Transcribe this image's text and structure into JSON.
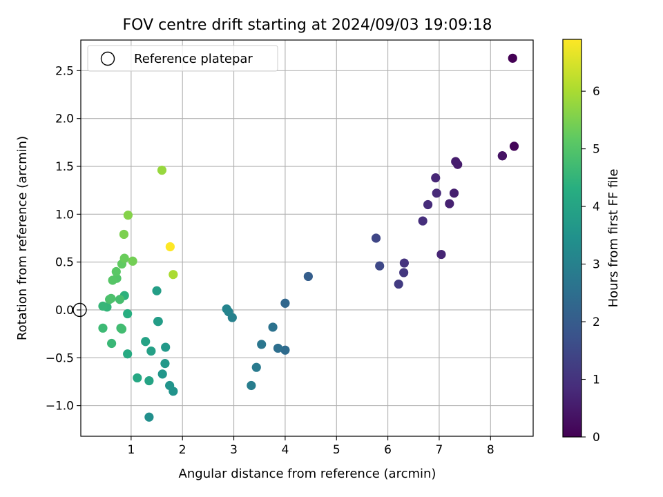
{
  "chart_data": {
    "type": "scatter",
    "title": "FOV centre drift starting at 2024/09/03 19:09:18",
    "xlabel": "Angular distance from reference (arcmin)",
    "ylabel": "Rotation from reference (arcmin)",
    "xlim": [
      0.02,
      8.83
    ],
    "ylim": [
      -1.32,
      2.82
    ],
    "xticks": [
      1,
      2,
      3,
      4,
      5,
      6,
      7,
      8
    ],
    "xtick_labels": [
      "1",
      "2",
      "3",
      "4",
      "5",
      "6",
      "7",
      "8"
    ],
    "yticks": [
      -1.0,
      -0.5,
      0.0,
      0.5,
      1.0,
      1.5,
      2.0,
      2.5
    ],
    "ytick_labels": [
      "−1.0",
      "−0.5",
      "0.0",
      "0.5",
      "1.0",
      "1.5",
      "2.0",
      "2.5"
    ],
    "grid": true,
    "legend": {
      "placement": "upper-left",
      "entries": [
        "Reference platepar"
      ]
    },
    "reference_point": {
      "x": 0.0,
      "y": 0.0
    },
    "colorbar": {
      "label": "Hours from first FF file",
      "colormap": "viridis",
      "min": 0,
      "max": 6.9,
      "ticks": [
        0,
        1,
        2,
        3,
        4,
        5,
        6
      ],
      "tick_labels": [
        "0",
        "1",
        "2",
        "3",
        "4",
        "5",
        "6"
      ]
    },
    "points": [
      {
        "x": 8.43,
        "y": 2.63,
        "c": 0.0
      },
      {
        "x": 8.46,
        "y": 1.71,
        "c": 0.1
      },
      {
        "x": 8.23,
        "y": 1.61,
        "c": 0.3
      },
      {
        "x": 8.23,
        "y": 1.61,
        "c": 0.35
      },
      {
        "x": 7.36,
        "y": 1.52,
        "c": 0.5
      },
      {
        "x": 7.32,
        "y": 1.55,
        "c": 0.55
      },
      {
        "x": 7.29,
        "y": 1.22,
        "c": 0.6
      },
      {
        "x": 7.2,
        "y": 1.11,
        "c": 0.65
      },
      {
        "x": 7.04,
        "y": 0.58,
        "c": 0.7
      },
      {
        "x": 6.93,
        "y": 1.38,
        "c": 0.75
      },
      {
        "x": 6.95,
        "y": 1.22,
        "c": 0.8
      },
      {
        "x": 6.78,
        "y": 1.1,
        "c": 0.85
      },
      {
        "x": 6.68,
        "y": 0.93,
        "c": 0.9
      },
      {
        "x": 6.32,
        "y": 0.49,
        "c": 1.0
      },
      {
        "x": 6.31,
        "y": 0.39,
        "c": 1.1
      },
      {
        "x": 6.21,
        "y": 0.27,
        "c": 1.2
      },
      {
        "x": 5.84,
        "y": 0.46,
        "c": 1.5
      },
      {
        "x": 5.77,
        "y": 0.75,
        "c": 1.45
      },
      {
        "x": 4.45,
        "y": 0.35,
        "c": 2.05
      },
      {
        "x": 4.0,
        "y": 0.07,
        "c": 2.3
      },
      {
        "x": 4.0,
        "y": -0.42,
        "c": 2.4
      },
      {
        "x": 3.86,
        "y": -0.4,
        "c": 2.5
      },
      {
        "x": 3.76,
        "y": -0.18,
        "c": 2.6
      },
      {
        "x": 3.54,
        "y": -0.36,
        "c": 2.7
      },
      {
        "x": 3.44,
        "y": -0.6,
        "c": 2.8
      },
      {
        "x": 3.34,
        "y": -0.79,
        "c": 2.9
      },
      {
        "x": 2.97,
        "y": -0.08,
        "c": 3.0
      },
      {
        "x": 2.9,
        "y": -0.02,
        "c": 3.05
      },
      {
        "x": 2.86,
        "y": 0.01,
        "c": 3.1
      },
      {
        "x": 1.35,
        "y": -1.12,
        "c": 3.4
      },
      {
        "x": 1.82,
        "y": -0.85,
        "c": 3.5
      },
      {
        "x": 1.75,
        "y": -0.79,
        "c": 3.55
      },
      {
        "x": 1.61,
        "y": -0.67,
        "c": 3.6
      },
      {
        "x": 1.66,
        "y": -0.56,
        "c": 3.65
      },
      {
        "x": 1.67,
        "y": -0.39,
        "c": 3.7
      },
      {
        "x": 1.53,
        "y": -0.12,
        "c": 3.75
      },
      {
        "x": 1.52,
        "y": -0.12,
        "c": 3.8
      },
      {
        "x": 1.5,
        "y": 0.2,
        "c": 3.85
      },
      {
        "x": 1.39,
        "y": -0.43,
        "c": 3.9
      },
      {
        "x": 1.28,
        "y": -0.33,
        "c": 3.95
      },
      {
        "x": 1.35,
        "y": -0.74,
        "c": 4.0
      },
      {
        "x": 1.12,
        "y": -0.71,
        "c": 4.1
      },
      {
        "x": 0.93,
        "y": -0.46,
        "c": 4.2
      },
      {
        "x": 0.93,
        "y": -0.04,
        "c": 4.3
      },
      {
        "x": 0.87,
        "y": 0.15,
        "c": 4.4
      },
      {
        "x": 0.53,
        "y": 0.03,
        "c": 4.5
      },
      {
        "x": 0.45,
        "y": 0.04,
        "c": 4.55
      },
      {
        "x": 0.62,
        "y": -0.35,
        "c": 4.6
      },
      {
        "x": 0.45,
        "y": -0.19,
        "c": 4.65
      },
      {
        "x": 0.8,
        "y": -0.19,
        "c": 4.7
      },
      {
        "x": 0.82,
        "y": -0.2,
        "c": 4.75
      },
      {
        "x": 0.78,
        "y": 0.11,
        "c": 4.8
      },
      {
        "x": 0.58,
        "y": 0.11,
        "c": 4.85
      },
      {
        "x": 0.61,
        "y": 0.12,
        "c": 4.9
      },
      {
        "x": 0.72,
        "y": 0.33,
        "c": 5.0
      },
      {
        "x": 0.64,
        "y": 0.31,
        "c": 5.05
      },
      {
        "x": 0.71,
        "y": 0.4,
        "c": 5.1
      },
      {
        "x": 0.82,
        "y": 0.48,
        "c": 5.2
      },
      {
        "x": 0.87,
        "y": 0.54,
        "c": 5.3
      },
      {
        "x": 1.03,
        "y": 0.51,
        "c": 5.4
      },
      {
        "x": 0.86,
        "y": 0.79,
        "c": 5.5
      },
      {
        "x": 0.94,
        "y": 0.99,
        "c": 5.6
      },
      {
        "x": 1.6,
        "y": 1.46,
        "c": 5.8
      },
      {
        "x": 1.82,
        "y": 0.37,
        "c": 6.0
      },
      {
        "x": 1.76,
        "y": 0.66,
        "c": 6.9
      }
    ]
  }
}
